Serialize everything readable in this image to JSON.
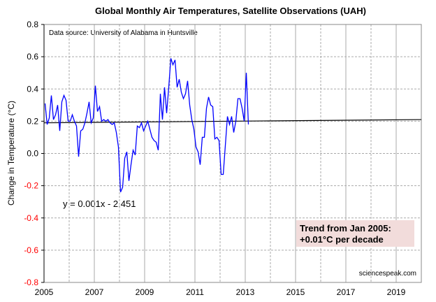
{
  "chart_data": {
    "type": "line",
    "title": "Global Monthly Air Temperatures, Satellite Observations (UAH)",
    "ylabel": "Change in Temperature  (°C)",
    "xlabel": "",
    "xlim": [
      2005,
      2020
    ],
    "ylim": [
      -0.8,
      0.8
    ],
    "x_ticks": [
      "2005",
      "2007",
      "2009",
      "2011",
      "2013",
      "2015",
      "2017",
      "2019"
    ],
    "y_ticks": [
      "0.8",
      "0.6",
      "0.4",
      "0.2",
      "0.0",
      "-0.2",
      "-0.4",
      "-0.6",
      "-0.8"
    ],
    "negative_tick_color": "#ff0000",
    "grid": true,
    "series": [
      {
        "color": "#0000ff",
        "start": "Jan 2005",
        "frequency": "monthly",
        "values": [
          0.31,
          0.18,
          0.22,
          0.36,
          0.21,
          0.24,
          0.3,
          0.14,
          0.32,
          0.36,
          0.33,
          0.2,
          0.2,
          0.24,
          0.2,
          0.17,
          -0.02,
          0.14,
          0.15,
          0.19,
          0.25,
          0.32,
          0.19,
          0.22,
          0.42,
          0.26,
          0.29,
          0.2,
          0.21,
          0.2,
          0.21,
          0.19,
          0.18,
          0.19,
          0.13,
          0.04,
          -0.24,
          -0.21,
          -0.03,
          0.01,
          -0.17,
          -0.07,
          0.02,
          -0.01,
          0.17,
          0.16,
          0.19,
          0.14,
          0.17,
          0.2,
          0.15,
          0.1,
          0.08,
          0.07,
          0.02,
          0.37,
          0.21,
          0.41,
          0.25,
          0.41,
          0.59,
          0.55,
          0.58,
          0.41,
          0.46,
          0.38,
          0.34,
          0.37,
          0.45,
          0.3,
          0.21,
          0.15,
          0.04,
          0.01,
          -0.07,
          0.1,
          0.1,
          0.28,
          0.35,
          0.3,
          0.29,
          0.09,
          0.1,
          0.08,
          -0.13,
          -0.13,
          0.05,
          0.23,
          0.18,
          0.23,
          0.13,
          0.2,
          0.34,
          0.34,
          0.28,
          0.2,
          0.5,
          0.18
        ]
      }
    ],
    "trendline": {
      "color": "#000000",
      "x": [
        2005,
        2020
      ],
      "y": [
        0.19,
        0.21
      ],
      "equation": "y = 0.001x - 2.451"
    },
    "annotations": {
      "source": "Data source:  University of Alabama in Huntsville",
      "trend_line1": "Trend from Jan 2005:",
      "trend_line2": "+0.01°C per decade",
      "trend_box_color": "#f2dcdb",
      "credit": "sciencespeak.com"
    }
  }
}
